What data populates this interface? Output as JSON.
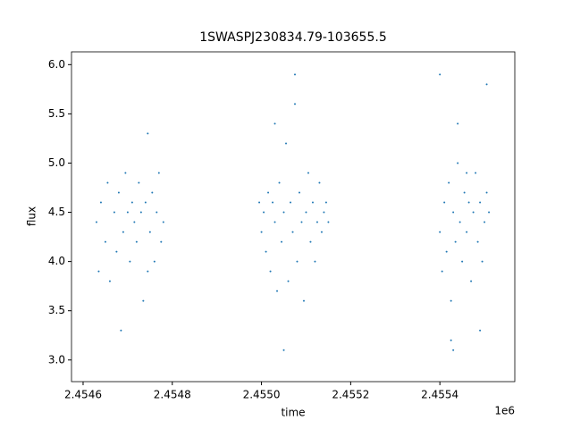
{
  "chart_data": {
    "type": "scatter",
    "title": "1SWASPJ230834.79-103655.5",
    "x_label": "time",
    "y_label": "flux",
    "x_offset_label": "1e6",
    "color": "#1f77b4",
    "grid": false,
    "xlim": [
      2454574,
      2455568
    ],
    "ylim": [
      2.78,
      6.13
    ],
    "xticks": [
      {
        "value": 2454600,
        "label": "2.4546"
      },
      {
        "value": 2454800,
        "label": "2.4548"
      },
      {
        "value": 2455000,
        "label": "2.4550"
      },
      {
        "value": 2455200,
        "label": "2.4552"
      },
      {
        "value": 2455400,
        "label": "2.4554"
      }
    ],
    "yticks": [
      {
        "value": 3,
        "label": "3.0"
      },
      3.5,
      {
        "value": 4,
        "label": "4.0"
      },
      4.5,
      {
        "value": 5,
        "label": "5.0"
      },
      5.5,
      {
        "value": 6,
        "label": "6.0"
      }
    ],
    "x": [
      2454630,
      2454635,
      2454640,
      2454650,
      2454655,
      2454660,
      2454670,
      2454675,
      2454680,
      2454690,
      2454695,
      2454700,
      2454705,
      2454710,
      2454715,
      2454720,
      2454725,
      2454730,
      2454735,
      2454740,
      2454745,
      2454750,
      2454755,
      2454760,
      2454765,
      2454770,
      2454775,
      2454780,
      2454685,
      2454745,
      2454995,
      2455000,
      2455005,
      2455010,
      2455015,
      2455020,
      2455025,
      2455030,
      2455035,
      2455040,
      2455045,
      2455050,
      2455055,
      2455060,
      2455065,
      2455070,
      2455075,
      2455080,
      2455085,
      2455090,
      2455095,
      2455100,
      2455105,
      2455110,
      2455115,
      2455120,
      2455125,
      2455130,
      2455135,
      2455140,
      2455145,
      2455150,
      2455050,
      2455075,
      2455030,
      2455400,
      2455405,
      2455410,
      2455415,
      2455420,
      2455425,
      2455430,
      2455435,
      2455440,
      2455445,
      2455450,
      2455455,
      2455460,
      2455465,
      2455470,
      2455475,
      2455480,
      2455485,
      2455490,
      2455495,
      2455500,
      2455505,
      2455510,
      2455400,
      2455425,
      2455440,
      2455490,
      2455505,
      2455430,
      2455460
    ],
    "values": [
      4.4,
      3.9,
      4.6,
      4.2,
      4.8,
      3.8,
      4.5,
      4.1,
      4.7,
      4.3,
      4.9,
      4.5,
      4.0,
      4.6,
      4.4,
      4.2,
      4.8,
      4.5,
      3.6,
      4.6,
      5.3,
      4.3,
      4.7,
      4.0,
      4.5,
      4.9,
      4.2,
      4.4,
      3.3,
      3.9,
      4.6,
      4.3,
      4.5,
      4.1,
      4.7,
      3.9,
      4.6,
      4.4,
      3.7,
      4.8,
      4.2,
      4.5,
      5.2,
      3.8,
      4.6,
      4.3,
      5.6,
      4.0,
      4.7,
      4.4,
      3.6,
      4.5,
      4.9,
      4.2,
      4.6,
      4.0,
      4.4,
      4.8,
      4.3,
      4.5,
      4.6,
      4.4,
      3.1,
      5.9,
      5.4,
      4.3,
      3.9,
      4.6,
      4.1,
      4.8,
      3.6,
      4.5,
      4.2,
      5.0,
      4.4,
      4.0,
      4.7,
      4.3,
      4.6,
      3.8,
      4.5,
      4.9,
      4.2,
      4.6,
      4.0,
      4.4,
      4.7,
      4.5,
      5.9,
      3.2,
      5.4,
      3.3,
      5.8,
      3.1,
      4.9
    ]
  }
}
